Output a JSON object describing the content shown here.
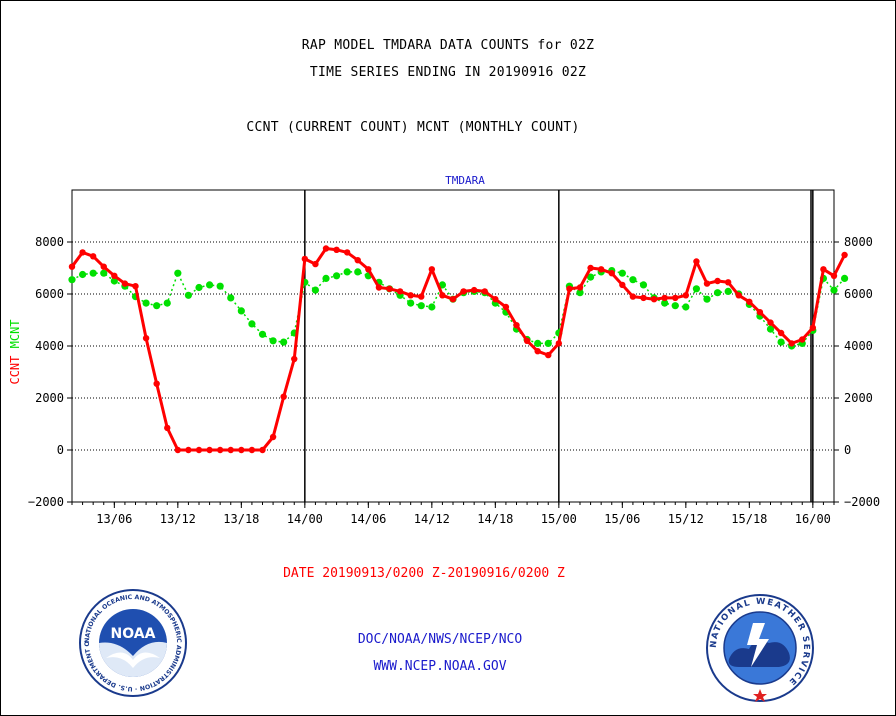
{
  "header": {
    "title_line1": "RAP MODEL TMDARA DATA COUNTS for 02Z",
    "title_line2": "TIME SERIES ENDING IN 20190916 02Z",
    "subtitle": "CCNT (CURRENT COUNT) MCNT (MONTHLY COUNT)"
  },
  "footer": {
    "date_range": "DATE 20190913/0200 Z-20190916/0200 Z",
    "credit_line1": "DOC/NOAA/NWS/NCEP/NCO",
    "credit_line2": "WWW.NCEP.NOAA.GOV"
  },
  "logos": {
    "noaa": "NOAA",
    "noaa_ring": "NATIONAL OCEANIC AND ATMOSPHERIC ADMINISTRATION · U.S. DEPARTMENT OF COMMERCE",
    "nws_ring": "NATIONAL WEATHER SERVICE"
  },
  "colors": {
    "ccnt": "#ff0000",
    "mcnt": "#00e000",
    "panel_label": "#1a1acc"
  },
  "chart_data": {
    "type": "line",
    "title": "TMDARA",
    "ylabel_left_1": "CCNT",
    "ylabel_left_2": "MCNT",
    "ylim": [
      -2000,
      10000
    ],
    "yticks": [
      -2000,
      0,
      2000,
      4000,
      6000,
      8000
    ],
    "ytick_labels": [
      "−2000",
      "0",
      "2000",
      "4000",
      "6000",
      "8000"
    ],
    "xlim_hours": [
      2,
      74
    ],
    "xticks": [
      {
        "hour": 6,
        "label": "13/06"
      },
      {
        "hour": 12,
        "label": "13/12"
      },
      {
        "hour": 18,
        "label": "13/18"
      },
      {
        "hour": 24,
        "label": "14/00"
      },
      {
        "hour": 30,
        "label": "14/06"
      },
      {
        "hour": 36,
        "label": "14/12"
      },
      {
        "hour": 42,
        "label": "14/18"
      },
      {
        "hour": 48,
        "label": "15/00"
      },
      {
        "hour": 54,
        "label": "15/06"
      },
      {
        "hour": 60,
        "label": "15/12"
      },
      {
        "hour": 66,
        "label": "15/18"
      },
      {
        "hour": 72,
        "label": "16/00"
      }
    ],
    "day_lines_hours": [
      24,
      48,
      72
    ],
    "grid_y": true,
    "series": [
      {
        "name": "CCNT",
        "color": "#ff0000",
        "values": [
          7050,
          7600,
          7450,
          7050,
          6700,
          6400,
          6300,
          4300,
          2550,
          850,
          0,
          0,
          0,
          0,
          0,
          0,
          0,
          0,
          0,
          500,
          2050,
          3500,
          7350,
          7150,
          7750,
          7700,
          7600,
          7300,
          6950,
          6250,
          6200,
          6100,
          5950,
          5900,
          6950,
          5950,
          5800,
          6100,
          6150,
          6100,
          5800,
          5500,
          4800,
          4200,
          3800,
          3650,
          4100,
          6200,
          6250,
          7000,
          6950,
          6800,
          6350,
          5900,
          5850,
          5800,
          5850,
          5850,
          5950,
          7250,
          6400,
          6500,
          6450,
          5950,
          5700,
          5300,
          4900,
          4500,
          4100,
          4250,
          4700,
          6950,
          6700,
          7500
        ]
      },
      {
        "name": "MCNT",
        "color": "#00e000",
        "values": [
          6550,
          6750,
          6800,
          6800,
          6500,
          6300,
          5900,
          5650,
          5550,
          5650,
          6800,
          5950,
          6250,
          6350,
          6300,
          5850,
          5350,
          4850,
          4450,
          4200,
          4150,
          4500,
          6450,
          6150,
          6600,
          6700,
          6850,
          6850,
          6700,
          6450,
          6200,
          5950,
          5650,
          5550,
          5500,
          6350,
          5800,
          6050,
          6100,
          6050,
          5650,
          5300,
          4650,
          4250,
          4100,
          4100,
          4500,
          6300,
          6050,
          6650,
          6850,
          6900,
          6800,
          6550,
          6350,
          5850,
          5650,
          5550,
          5500,
          6200,
          5800,
          6050,
          6100,
          6000,
          5600,
          5150,
          4650,
          4150,
          4000,
          4100,
          4600,
          6600,
          6150,
          6600
        ]
      }
    ]
  }
}
